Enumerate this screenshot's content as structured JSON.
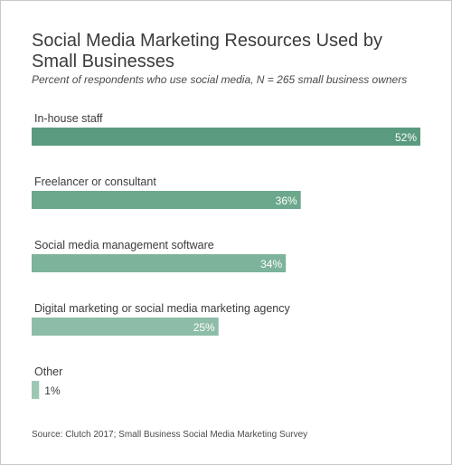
{
  "title": "Social Media Marketing Resources Used by Small Businesses",
  "subtitle": "Percent of respondents who use social media, N = 265 small business owners",
  "source": "Source: Clutch 2017; Small Business Social Media Marketing Survey",
  "chart_data": {
    "type": "bar",
    "orientation": "horizontal",
    "categories": [
      "In-house staff",
      "Freelancer or consultant",
      "Social media management software",
      "Digital marketing or social media marketing agency",
      "Other"
    ],
    "values": [
      52,
      36,
      34,
      25,
      1
    ],
    "value_labels": [
      "52%",
      "36%",
      "34%",
      "25%",
      "1%"
    ],
    "unit": "%",
    "xlim": [
      0,
      52
    ],
    "grid": false,
    "colors": [
      "#5a9a7e",
      "#6ba88c",
      "#7cb39a",
      "#8dbda8",
      "#9ec6b4"
    ],
    "value_label_color_inside": "#ffffff",
    "value_label_color_outside": "#3b3b3b"
  }
}
